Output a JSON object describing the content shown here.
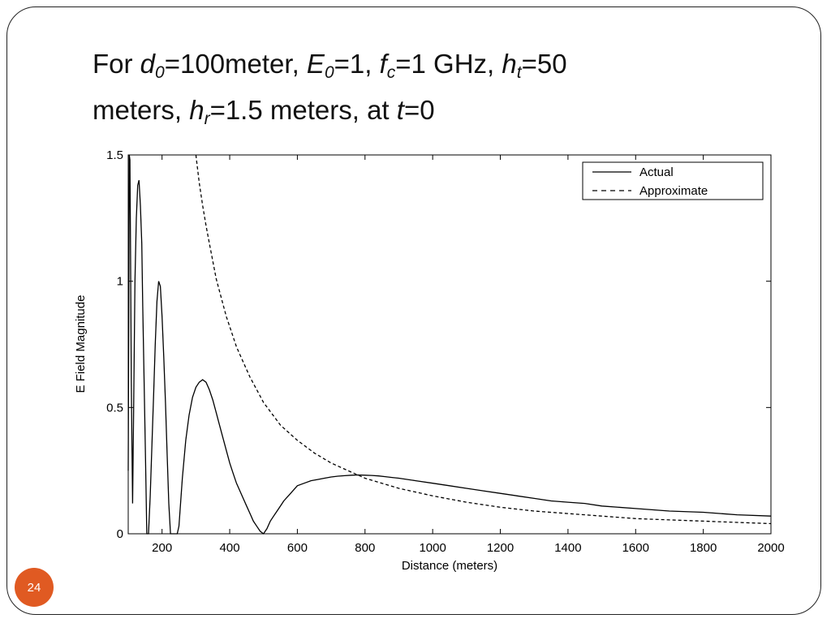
{
  "slide": {
    "title_parts": {
      "p1": "For ",
      "v1": "d",
      "s1": "0",
      "p2": "=100meter, ",
      "v2": "E",
      "s2": "0",
      "p3": "=1,  ",
      "v3": "f",
      "s3": "c",
      "p4": "=1 GHz, ",
      "v4": "h",
      "s4": "t",
      "p5": "=50",
      "p6": "meters, ",
      "v5": "h",
      "s5": "r",
      "p7": "=1.5 meters, at ",
      "v6": "t",
      "p8": "=0"
    },
    "page_number": "24",
    "colors": {
      "badge": "#e05a22",
      "frame": "#222222"
    }
  },
  "chart_data": {
    "type": "line",
    "xlabel": "Distance (meters)",
    "ylabel": "E Field Magnitude",
    "xlim": [
      100,
      2000
    ],
    "ylim": [
      0,
      1.5
    ],
    "x_ticks": [
      200,
      400,
      600,
      800,
      1000,
      1200,
      1400,
      1600,
      1800,
      2000
    ],
    "y_ticks": [
      0,
      0.5,
      1,
      1.5
    ],
    "y_tick_labels": [
      "0",
      "0.5",
      "1",
      "1.5"
    ],
    "legend_position": "top-right",
    "grid": false,
    "series": [
      {
        "name": "Actual",
        "style": "solid",
        "x": [
          100,
          101,
          103,
          105,
          107,
          109,
          111,
          113,
          116,
          120,
          124,
          128,
          132,
          136,
          140,
          143,
          147,
          151,
          155,
          160,
          165,
          170,
          175,
          180,
          185,
          190,
          195,
          200,
          205,
          210,
          215,
          220,
          225,
          230,
          235,
          240,
          245,
          250,
          260,
          270,
          280,
          290,
          300,
          310,
          320,
          330,
          340,
          350,
          360,
          370,
          380,
          390,
          400,
          410,
          420,
          430,
          440,
          450,
          460,
          470,
          480,
          490,
          500,
          510,
          520,
          530,
          540,
          550,
          560,
          580,
          600,
          620,
          640,
          660,
          680,
          700,
          720,
          740,
          760,
          780,
          800,
          820,
          840,
          860,
          880,
          900,
          950,
          1000,
          1050,
          1100,
          1150,
          1200,
          1250,
          1300,
          1350,
          1400,
          1450,
          1500,
          1600,
          1700,
          1800,
          1900,
          2000
        ],
        "y": [
          0.25,
          0.6,
          1.5,
          1.48,
          1.1,
          0.6,
          0.35,
          0.12,
          0.5,
          1.0,
          1.25,
          1.38,
          1.4,
          1.3,
          1.15,
          0.9,
          0.6,
          0.3,
          0.0,
          0.0,
          0.15,
          0.35,
          0.55,
          0.75,
          0.92,
          1.0,
          0.98,
          0.86,
          0.7,
          0.52,
          0.32,
          0.12,
          0.0,
          0.0,
          0.0,
          0.0,
          0.0,
          0.03,
          0.22,
          0.37,
          0.47,
          0.54,
          0.58,
          0.6,
          0.61,
          0.6,
          0.57,
          0.53,
          0.48,
          0.43,
          0.38,
          0.33,
          0.28,
          0.24,
          0.2,
          0.17,
          0.14,
          0.11,
          0.08,
          0.05,
          0.03,
          0.01,
          0.0,
          0.02,
          0.05,
          0.07,
          0.09,
          0.11,
          0.13,
          0.16,
          0.19,
          0.2,
          0.21,
          0.215,
          0.22,
          0.225,
          0.228,
          0.23,
          0.232,
          0.233,
          0.232,
          0.231,
          0.229,
          0.226,
          0.223,
          0.22,
          0.21,
          0.2,
          0.19,
          0.18,
          0.17,
          0.16,
          0.15,
          0.14,
          0.13,
          0.125,
          0.12,
          0.11,
          0.1,
          0.09,
          0.085,
          0.075,
          0.07
        ]
      },
      {
        "name": "Approximate",
        "style": "dashed",
        "x": [
          300,
          310,
          320,
          330,
          340,
          350,
          360,
          370,
          380,
          390,
          400,
          420,
          440,
          460,
          480,
          500,
          550,
          600,
          650,
          700,
          750,
          800,
          850,
          900,
          950,
          1000,
          1100,
          1200,
          1300,
          1400,
          1500,
          1600,
          1700,
          1800,
          1900,
          2000
        ],
        "y": [
          1.5,
          1.39,
          1.3,
          1.22,
          1.15,
          1.08,
          1.01,
          0.96,
          0.91,
          0.86,
          0.82,
          0.74,
          0.68,
          0.62,
          0.57,
          0.52,
          0.43,
          0.37,
          0.32,
          0.28,
          0.25,
          0.22,
          0.2,
          0.18,
          0.165,
          0.15,
          0.125,
          0.105,
          0.09,
          0.08,
          0.07,
          0.06,
          0.055,
          0.05,
          0.045,
          0.04
        ]
      }
    ]
  }
}
